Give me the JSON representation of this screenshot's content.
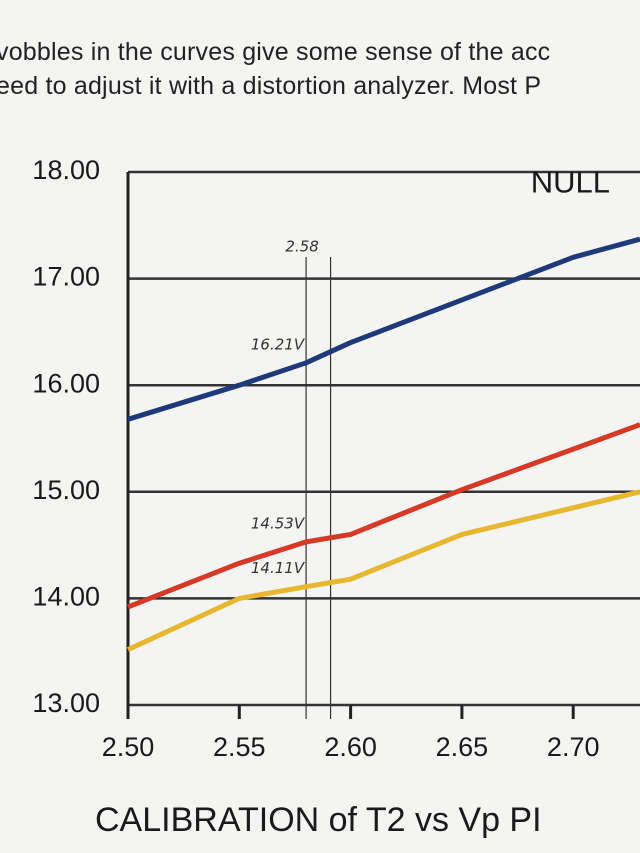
{
  "header": {
    "lines": [
      "vobbles in the curves give some sense of the acc",
      "eed to adjust it with a distortion analyzer.  Most P"
    ]
  },
  "chart_data": {
    "type": "line",
    "title": "CALIBRATION of T2 vs Vp PI",
    "x": [
      2.5,
      2.55,
      2.58,
      2.6,
      2.65,
      2.7,
      2.73
    ],
    "series": [
      {
        "name": "NULL",
        "color": "#1f3a7a",
        "values": [
          15.68,
          16.0,
          16.21,
          16.4,
          16.8,
          17.2,
          17.37
        ]
      },
      {
        "color": "#d63a26",
        "values": [
          13.92,
          14.33,
          14.53,
          14.6,
          15.02,
          15.4,
          15.63
        ]
      },
      {
        "color": "#e8b730",
        "values": [
          13.52,
          14.0,
          14.11,
          14.18,
          14.6,
          14.85,
          15.0
        ]
      }
    ],
    "xlim": [
      2.5,
      2.73
    ],
    "ylim": [
      13,
      18
    ],
    "xticks": [
      {
        "value": 2.5,
        "label": "2.50"
      },
      {
        "value": 2.55,
        "label": "2.55"
      },
      {
        "value": 2.6,
        "label": "2.60"
      },
      {
        "value": 2.65,
        "label": "2.65"
      },
      {
        "value": 2.7,
        "label": "2.70"
      }
    ],
    "yticks": [
      {
        "value": 13,
        "label": "13.00"
      },
      {
        "value": 14,
        "label": "14.00"
      },
      {
        "value": 15,
        "label": "15.00"
      },
      {
        "value": 16,
        "label": "16.00"
      },
      {
        "value": 17,
        "label": "17.00"
      },
      {
        "value": 18,
        "label": "18.00"
      }
    ],
    "grid": true,
    "vlines": [
      {
        "value": 2.58,
        "label": "2.58"
      },
      {
        "value": 2.591
      }
    ],
    "annotations": [
      {
        "text": "16.21V",
        "x": 2.58,
        "y": 16.21
      },
      {
        "text": "14.53V",
        "x": 2.58,
        "y": 14.53
      },
      {
        "text": "14.11V",
        "x": 2.58,
        "y": 14.11
      }
    ]
  }
}
